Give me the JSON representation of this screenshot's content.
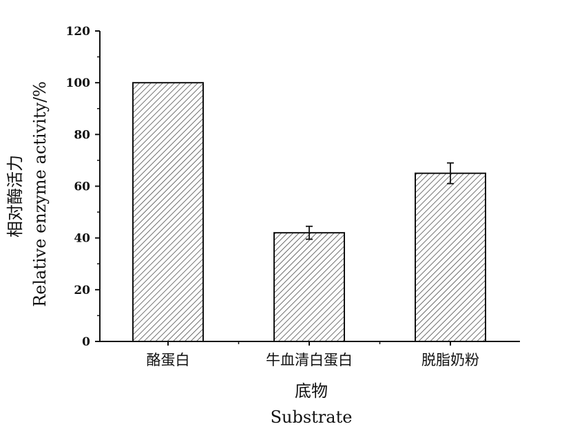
{
  "chart_data": {
    "type": "bar",
    "categories": [
      "酪蛋白",
      "牛血清白蛋白",
      "脱脂奶粉"
    ],
    "values": [
      100,
      42,
      65
    ],
    "errors": [
      0,
      2.5,
      4
    ],
    "ylim": [
      0,
      120
    ],
    "yticks": [
      0,
      20,
      40,
      60,
      80,
      100,
      120
    ],
    "ylabel_cn": "相对酶活力",
    "ylabel_en": "Relative enzyme activity/%",
    "xlabel_cn": "底物",
    "xlabel_en": "Substrate",
    "bar_style": "diagonal hatch",
    "colors": {
      "bar_fill": "#ffffff",
      "hatch": "#333333",
      "axis": "#111111"
    }
  }
}
